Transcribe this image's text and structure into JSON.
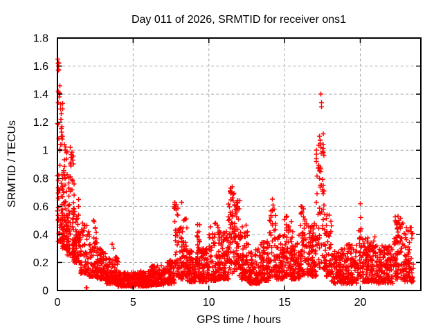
{
  "figure": {
    "title": "Day 011 of 2026, SRMTID for receiver ons1",
    "x_axis_label": "GPS time / hours",
    "y_axis_label": "SRMTID / TECUs"
  },
  "chart_data": {
    "type": "scatter",
    "title": "Day 011 of 2026, SRMTID for receiver ons1",
    "xlabel": "GPS time / hours",
    "ylabel": "SRMTID / TECUs",
    "xlim": [
      0,
      24
    ],
    "ylim": [
      0,
      1.8
    ],
    "xticks": {
      "values": [
        0,
        5,
        10,
        15,
        20
      ],
      "labels": [
        "0",
        "5",
        "10",
        "15",
        "20"
      ]
    },
    "yticks": {
      "values": [
        0,
        0.2,
        0.4,
        0.6,
        0.8,
        1.0,
        1.2,
        1.4,
        1.6,
        1.8
      ],
      "labels": [
        "0",
        "0.2",
        "0.4",
        "0.6",
        "0.8",
        "1",
        "1.2",
        "1.4",
        "1.6",
        "1.8"
      ]
    },
    "grid": true,
    "legend_position": "none",
    "marker": "plus",
    "marker_size_px": 7,
    "colors": {
      "points": "#ff0000",
      "grid": "#a6a6a6",
      "axes": "#000000",
      "background": "#ffffff"
    },
    "series_name": "SRMTID",
    "density_bins_comment": "Dense scatter summarized as bins read off the plot: [t_start_h, t_end_h, approx_count, y_min_TECU, y_max_TECU, concentration_bias]. Points cluster toward y_min; spikes have lower bias.",
    "density_bins": [
      [
        0.0,
        0.15,
        25,
        0.5,
        1.65,
        2.6
      ],
      [
        0.05,
        0.4,
        55,
        0.35,
        1.35,
        2.3
      ],
      [
        0.3,
        0.7,
        65,
        0.3,
        1.05,
        2.0
      ],
      [
        0.6,
        1.1,
        75,
        0.25,
        1.0,
        1.7
      ],
      [
        1.0,
        1.5,
        65,
        0.2,
        0.65,
        1.8
      ],
      [
        1.5,
        2.0,
        55,
        0.12,
        0.5,
        1.8
      ],
      [
        2.0,
        2.6,
        65,
        0.1,
        0.45,
        2.0
      ],
      [
        2.6,
        3.2,
        75,
        0.08,
        0.3,
        1.8
      ],
      [
        3.2,
        4.0,
        105,
        0.05,
        0.24,
        1.8
      ],
      [
        4.0,
        5.2,
        150,
        0.03,
        0.13,
        1.5
      ],
      [
        5.2,
        6.2,
        140,
        0.03,
        0.14,
        1.5
      ],
      [
        6.2,
        7.2,
        140,
        0.04,
        0.18,
        1.6
      ],
      [
        7.2,
        7.7,
        70,
        0.05,
        0.22,
        1.6
      ],
      [
        7.7,
        7.95,
        30,
        0.1,
        0.63,
        1.2
      ],
      [
        7.95,
        8.3,
        40,
        0.08,
        0.45,
        1.5
      ],
      [
        8.3,
        8.6,
        40,
        0.1,
        0.52,
        1.4
      ],
      [
        8.6,
        9.1,
        70,
        0.06,
        0.3,
        1.6
      ],
      [
        9.1,
        9.4,
        40,
        0.08,
        0.47,
        1.4
      ],
      [
        9.4,
        10.0,
        80,
        0.06,
        0.3,
        1.6
      ],
      [
        10.0,
        10.7,
        90,
        0.07,
        0.48,
        1.8
      ],
      [
        10.7,
        11.3,
        90,
        0.08,
        0.42,
        1.7
      ],
      [
        11.3,
        11.65,
        50,
        0.12,
        0.75,
        1.4
      ],
      [
        11.65,
        12.1,
        60,
        0.1,
        0.65,
        1.5
      ],
      [
        12.1,
        12.6,
        70,
        0.08,
        0.5,
        1.7
      ],
      [
        12.6,
        13.4,
        100,
        0.05,
        0.3,
        1.7
      ],
      [
        13.4,
        14.0,
        80,
        0.07,
        0.35,
        1.7
      ],
      [
        14.0,
        14.45,
        50,
        0.1,
        0.65,
        1.8
      ],
      [
        14.45,
        15.0,
        70,
        0.08,
        0.4,
        1.7
      ],
      [
        15.0,
        15.45,
        60,
        0.1,
        0.55,
        1.7
      ],
      [
        15.45,
        16.0,
        70,
        0.08,
        0.42,
        1.7
      ],
      [
        16.0,
        16.35,
        50,
        0.1,
        0.6,
        1.6
      ],
      [
        16.35,
        17.1,
        100,
        0.1,
        0.48,
        1.6
      ],
      [
        17.1,
        17.65,
        65,
        0.15,
        1.12,
        1.5
      ],
      [
        17.65,
        18.1,
        60,
        0.1,
        0.55,
        1.7
      ],
      [
        18.1,
        19.0,
        110,
        0.05,
        0.3,
        1.7
      ],
      [
        19.0,
        19.9,
        110,
        0.05,
        0.33,
        1.7
      ],
      [
        19.9,
        20.15,
        25,
        0.08,
        0.45,
        1.3
      ],
      [
        20.15,
        21.0,
        110,
        0.06,
        0.4,
        1.8
      ],
      [
        21.0,
        22.2,
        140,
        0.05,
        0.32,
        1.7
      ],
      [
        22.2,
        22.85,
        80,
        0.08,
        0.53,
        1.7
      ],
      [
        22.85,
        23.5,
        80,
        0.06,
        0.45,
        1.8
      ]
    ],
    "outlier_points": [
      [
        0.03,
        1.65
      ],
      [
        0.05,
        1.62
      ],
      [
        0.07,
        1.6
      ],
      [
        0.04,
        1.57
      ],
      [
        0.15,
        1.46
      ],
      [
        0.1,
        1.41
      ],
      [
        0.12,
        1.38
      ],
      [
        0.2,
        1.33
      ],
      [
        0.25,
        1.26
      ],
      [
        0.22,
        1.22
      ],
      [
        0.3,
        1.17
      ],
      [
        0.28,
        1.13
      ],
      [
        0.35,
        1.1
      ],
      [
        0.32,
        1.08
      ],
      [
        0.45,
        1.04
      ],
      [
        0.5,
        1.0
      ],
      [
        0.85,
        1.02
      ],
      [
        0.9,
        0.97
      ],
      [
        0.95,
        0.95
      ],
      [
        1.0,
        0.93
      ],
      [
        1.9,
        0.02
      ],
      [
        1.95,
        0.02
      ],
      [
        2.38,
        0.5
      ],
      [
        2.42,
        0.49
      ],
      [
        3.6,
        0.33
      ],
      [
        3.7,
        0.3
      ],
      [
        7.75,
        0.63
      ],
      [
        7.78,
        0.6
      ],
      [
        8.2,
        0.63
      ],
      [
        9.25,
        0.47
      ],
      [
        10.45,
        0.48
      ],
      [
        11.45,
        0.73
      ],
      [
        11.5,
        0.7
      ],
      [
        11.55,
        0.66
      ],
      [
        11.85,
        0.63
      ],
      [
        11.9,
        0.6
      ],
      [
        14.2,
        0.65
      ],
      [
        14.25,
        0.61
      ],
      [
        14.3,
        0.58
      ],
      [
        15.15,
        0.53
      ],
      [
        16.1,
        0.6
      ],
      [
        16.15,
        0.56
      ],
      [
        17.4,
        1.4
      ],
      [
        17.45,
        1.34
      ],
      [
        17.43,
        1.31
      ],
      [
        17.3,
        1.1
      ],
      [
        17.35,
        1.05
      ],
      [
        17.4,
        1.02
      ],
      [
        17.42,
        0.98
      ],
      [
        17.35,
        0.88
      ],
      [
        17.3,
        0.8
      ],
      [
        17.45,
        0.75
      ],
      [
        17.5,
        0.72
      ],
      [
        20.0,
        0.62
      ],
      [
        20.02,
        0.52
      ],
      [
        20.05,
        0.44
      ],
      [
        22.5,
        0.53
      ],
      [
        22.55,
        0.5
      ],
      [
        22.6,
        0.47
      ],
      [
        23.3,
        0.45
      ],
      [
        23.35,
        0.42
      ]
    ]
  }
}
